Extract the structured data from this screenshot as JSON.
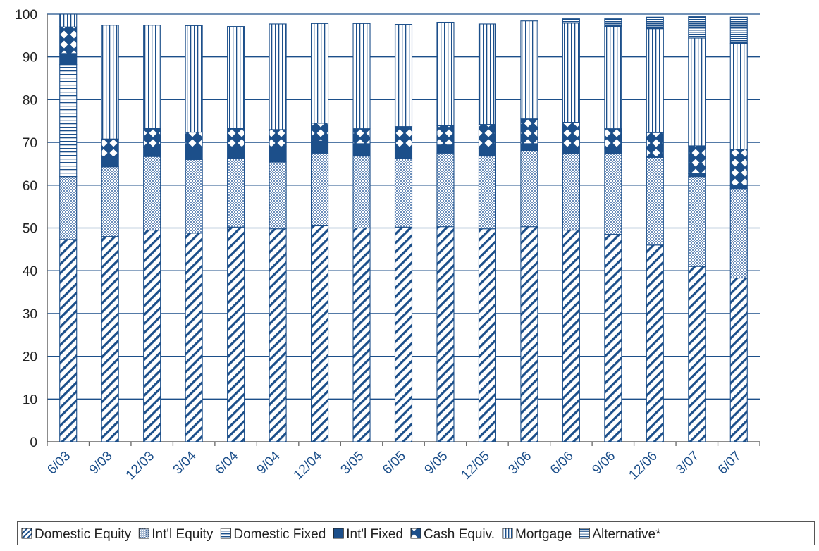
{
  "chart_data": {
    "type": "bar",
    "stacked": true,
    "title": "",
    "xlabel": "",
    "ylabel": "",
    "ylim": [
      0,
      100
    ],
    "yticks": [
      0,
      10,
      20,
      30,
      40,
      50,
      60,
      70,
      80,
      90,
      100
    ],
    "grid": "horizontal",
    "legend_position": "bottom",
    "categories": [
      "6/03",
      "9/03",
      "12/03",
      "3/04",
      "6/04",
      "9/04",
      "12/04",
      "3/05",
      "6/05",
      "9/05",
      "12/05",
      "3/06",
      "6/06",
      "9/06",
      "12/06",
      "3/07",
      "6/07"
    ],
    "series": [
      {
        "name": "Domestic Equity",
        "pattern": "diagonal-hatch",
        "values": [
          47.3,
          48.0,
          49.5,
          48.8,
          50.2,
          49.8,
          50.5,
          50.0,
          50.2,
          50.3,
          49.8,
          50.3,
          49.5,
          48.5,
          46.0,
          41.0,
          38.3
        ]
      },
      {
        "name": "Int'l Equity",
        "pattern": "crosshatch",
        "values": [
          14.7,
          16.3,
          17.2,
          17.2,
          16.1,
          15.6,
          17.0,
          16.8,
          16.1,
          17.2,
          17.0,
          17.7,
          17.8,
          18.8,
          20.5,
          21.0,
          20.9
        ]
      },
      {
        "name": "Domestic Fixed",
        "pattern": "horizontal-lines",
        "values": [
          26.2,
          0,
          0,
          0,
          0,
          0,
          0,
          0,
          0,
          0,
          0,
          0,
          0,
          0,
          0,
          0,
          0
        ]
      },
      {
        "name": "Int'l Fixed",
        "pattern": "solid",
        "values": [
          2.6,
          2.5,
          2.1,
          2.9,
          2.7,
          3.6,
          2.8,
          2.9,
          2.4,
          1.9,
          1.8,
          1.7,
          1.4,
          1.4,
          0.3,
          0.7,
          0.7
        ]
      },
      {
        "name": "Cash Equiv.",
        "pattern": "diamonds",
        "values": [
          6.2,
          4.0,
          4.5,
          3.5,
          4.3,
          4.0,
          4.2,
          3.5,
          5.0,
          4.5,
          5.6,
          5.8,
          6.0,
          4.5,
          5.5,
          6.5,
          8.5
        ]
      },
      {
        "name": "Mortgage",
        "pattern": "vertical-lines",
        "values": [
          3.0,
          26.6,
          24.1,
          24.9,
          23.8,
          24.7,
          23.3,
          24.6,
          23.9,
          24.2,
          23.5,
          22.9,
          23.2,
          23.9,
          24.3,
          25.2,
          24.7
        ]
      },
      {
        "name": "Alternative*",
        "pattern": "dense-horizontal",
        "values": [
          0,
          0,
          0,
          0,
          0,
          0,
          0,
          0,
          0,
          0,
          0,
          0,
          1.0,
          1.8,
          2.7,
          5.0,
          6.2
        ]
      }
    ],
    "colors": {
      "primary": "#1c4f8a",
      "background": "#ffffff",
      "grid": "#1c4f8a"
    }
  }
}
